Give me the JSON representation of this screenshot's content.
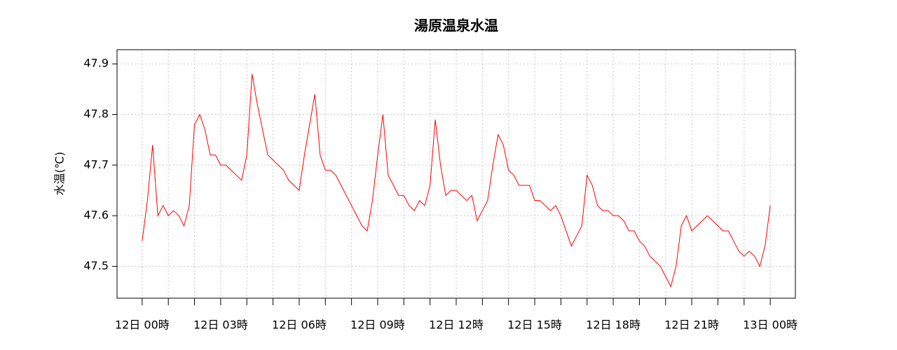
{
  "chart_data": {
    "type": "line",
    "title": "湯原温泉水温",
    "y_label": "水温(℃)",
    "x": [
      0,
      0.2,
      0.4,
      0.6,
      0.8,
      1,
      1.2,
      1.4,
      1.6,
      1.8,
      2,
      2.2,
      2.4,
      2.6,
      2.8,
      3,
      3.2,
      3.4,
      3.6,
      3.8,
      4,
      4.2,
      4.4,
      4.6,
      4.8,
      5,
      5.2,
      5.4,
      5.6,
      5.8,
      6,
      6.2,
      6.4,
      6.6,
      6.8,
      7,
      7.2,
      7.4,
      7.6,
      7.8,
      8,
      8.2,
      8.4,
      8.6,
      8.8,
      9,
      9.2,
      9.4,
      9.6,
      9.8,
      10,
      10.2,
      10.4,
      10.6,
      10.8,
      11,
      11.2,
      11.4,
      11.6,
      11.8,
      12,
      12.2,
      12.4,
      12.6,
      12.8,
      13,
      13.2,
      13.4,
      13.6,
      13.8,
      14,
      14.2,
      14.4,
      14.6,
      14.8,
      15,
      15.2,
      15.4,
      15.6,
      15.8,
      16,
      16.2,
      16.4,
      16.6,
      16.8,
      17,
      17.2,
      17.4,
      17.6,
      17.8,
      18,
      18.2,
      18.4,
      18.6,
      18.8,
      19,
      19.2,
      19.4,
      19.6,
      19.8,
      20,
      20.2,
      20.4,
      20.6,
      20.8,
      21,
      21.2,
      21.4,
      21.6,
      21.8,
      22,
      22.2,
      22.4,
      22.6,
      22.8,
      23,
      23.2,
      23.4,
      23.6,
      23.8,
      24
    ],
    "series": [
      {
        "name": "水温",
        "color": "#ff0000",
        "values": [
          47.55,
          47.63,
          47.74,
          47.6,
          47.62,
          47.6,
          47.61,
          47.6,
          47.58,
          47.62,
          47.78,
          47.8,
          47.77,
          47.72,
          47.72,
          47.7,
          47.7,
          47.69,
          47.68,
          47.67,
          47.72,
          47.88,
          47.82,
          47.77,
          47.72,
          47.71,
          47.7,
          47.69,
          47.67,
          47.66,
          47.65,
          47.72,
          47.78,
          47.84,
          47.72,
          47.69,
          47.69,
          47.68,
          47.66,
          47.64,
          47.62,
          47.6,
          47.58,
          47.57,
          47.63,
          47.72,
          47.8,
          47.68,
          47.66,
          47.64,
          47.64,
          47.62,
          47.61,
          47.63,
          47.62,
          47.66,
          47.79,
          47.7,
          47.64,
          47.65,
          47.65,
          47.64,
          47.63,
          47.64,
          47.59,
          47.61,
          47.63,
          47.7,
          47.76,
          47.74,
          47.69,
          47.68,
          47.66,
          47.66,
          47.66,
          47.63,
          47.63,
          47.62,
          47.61,
          47.62,
          47.6,
          47.57,
          47.54,
          47.56,
          47.58,
          47.68,
          47.66,
          47.62,
          47.61,
          47.61,
          47.6,
          47.6,
          47.59,
          47.57,
          47.57,
          47.55,
          47.54,
          47.52,
          47.51,
          47.5,
          47.48,
          47.46,
          47.5,
          47.58,
          47.6,
          47.57,
          47.58,
          47.59,
          47.6,
          47.59,
          47.58,
          47.57,
          47.57,
          47.55,
          47.53,
          47.52,
          47.53,
          47.52,
          47.5,
          47.54,
          47.62
        ]
      }
    ],
    "xlim": [
      -0.96,
      24.96
    ],
    "xticks": [
      {
        "value": 0,
        "label": "12日 00時"
      },
      {
        "value": 3,
        "label": "12日 03時"
      },
      {
        "value": 6,
        "label": "12日 06時"
      },
      {
        "value": 9,
        "label": "12日 09時"
      },
      {
        "value": 12,
        "label": "12日 12時"
      },
      {
        "value": 15,
        "label": "12日 15時"
      },
      {
        "value": 18,
        "label": "12日 18時"
      },
      {
        "value": 21,
        "label": "12日 21時"
      },
      {
        "value": 24,
        "label": "13日 00時"
      }
    ],
    "xticks_minor": [
      1,
      2,
      4,
      5,
      7,
      8,
      10,
      11,
      13,
      14,
      16,
      17,
      19,
      20,
      22,
      23
    ],
    "ylim": [
      47.437,
      47.928
    ],
    "yticks": [
      47.5,
      47.6,
      47.7,
      47.8,
      47.9
    ],
    "grid": true
  }
}
